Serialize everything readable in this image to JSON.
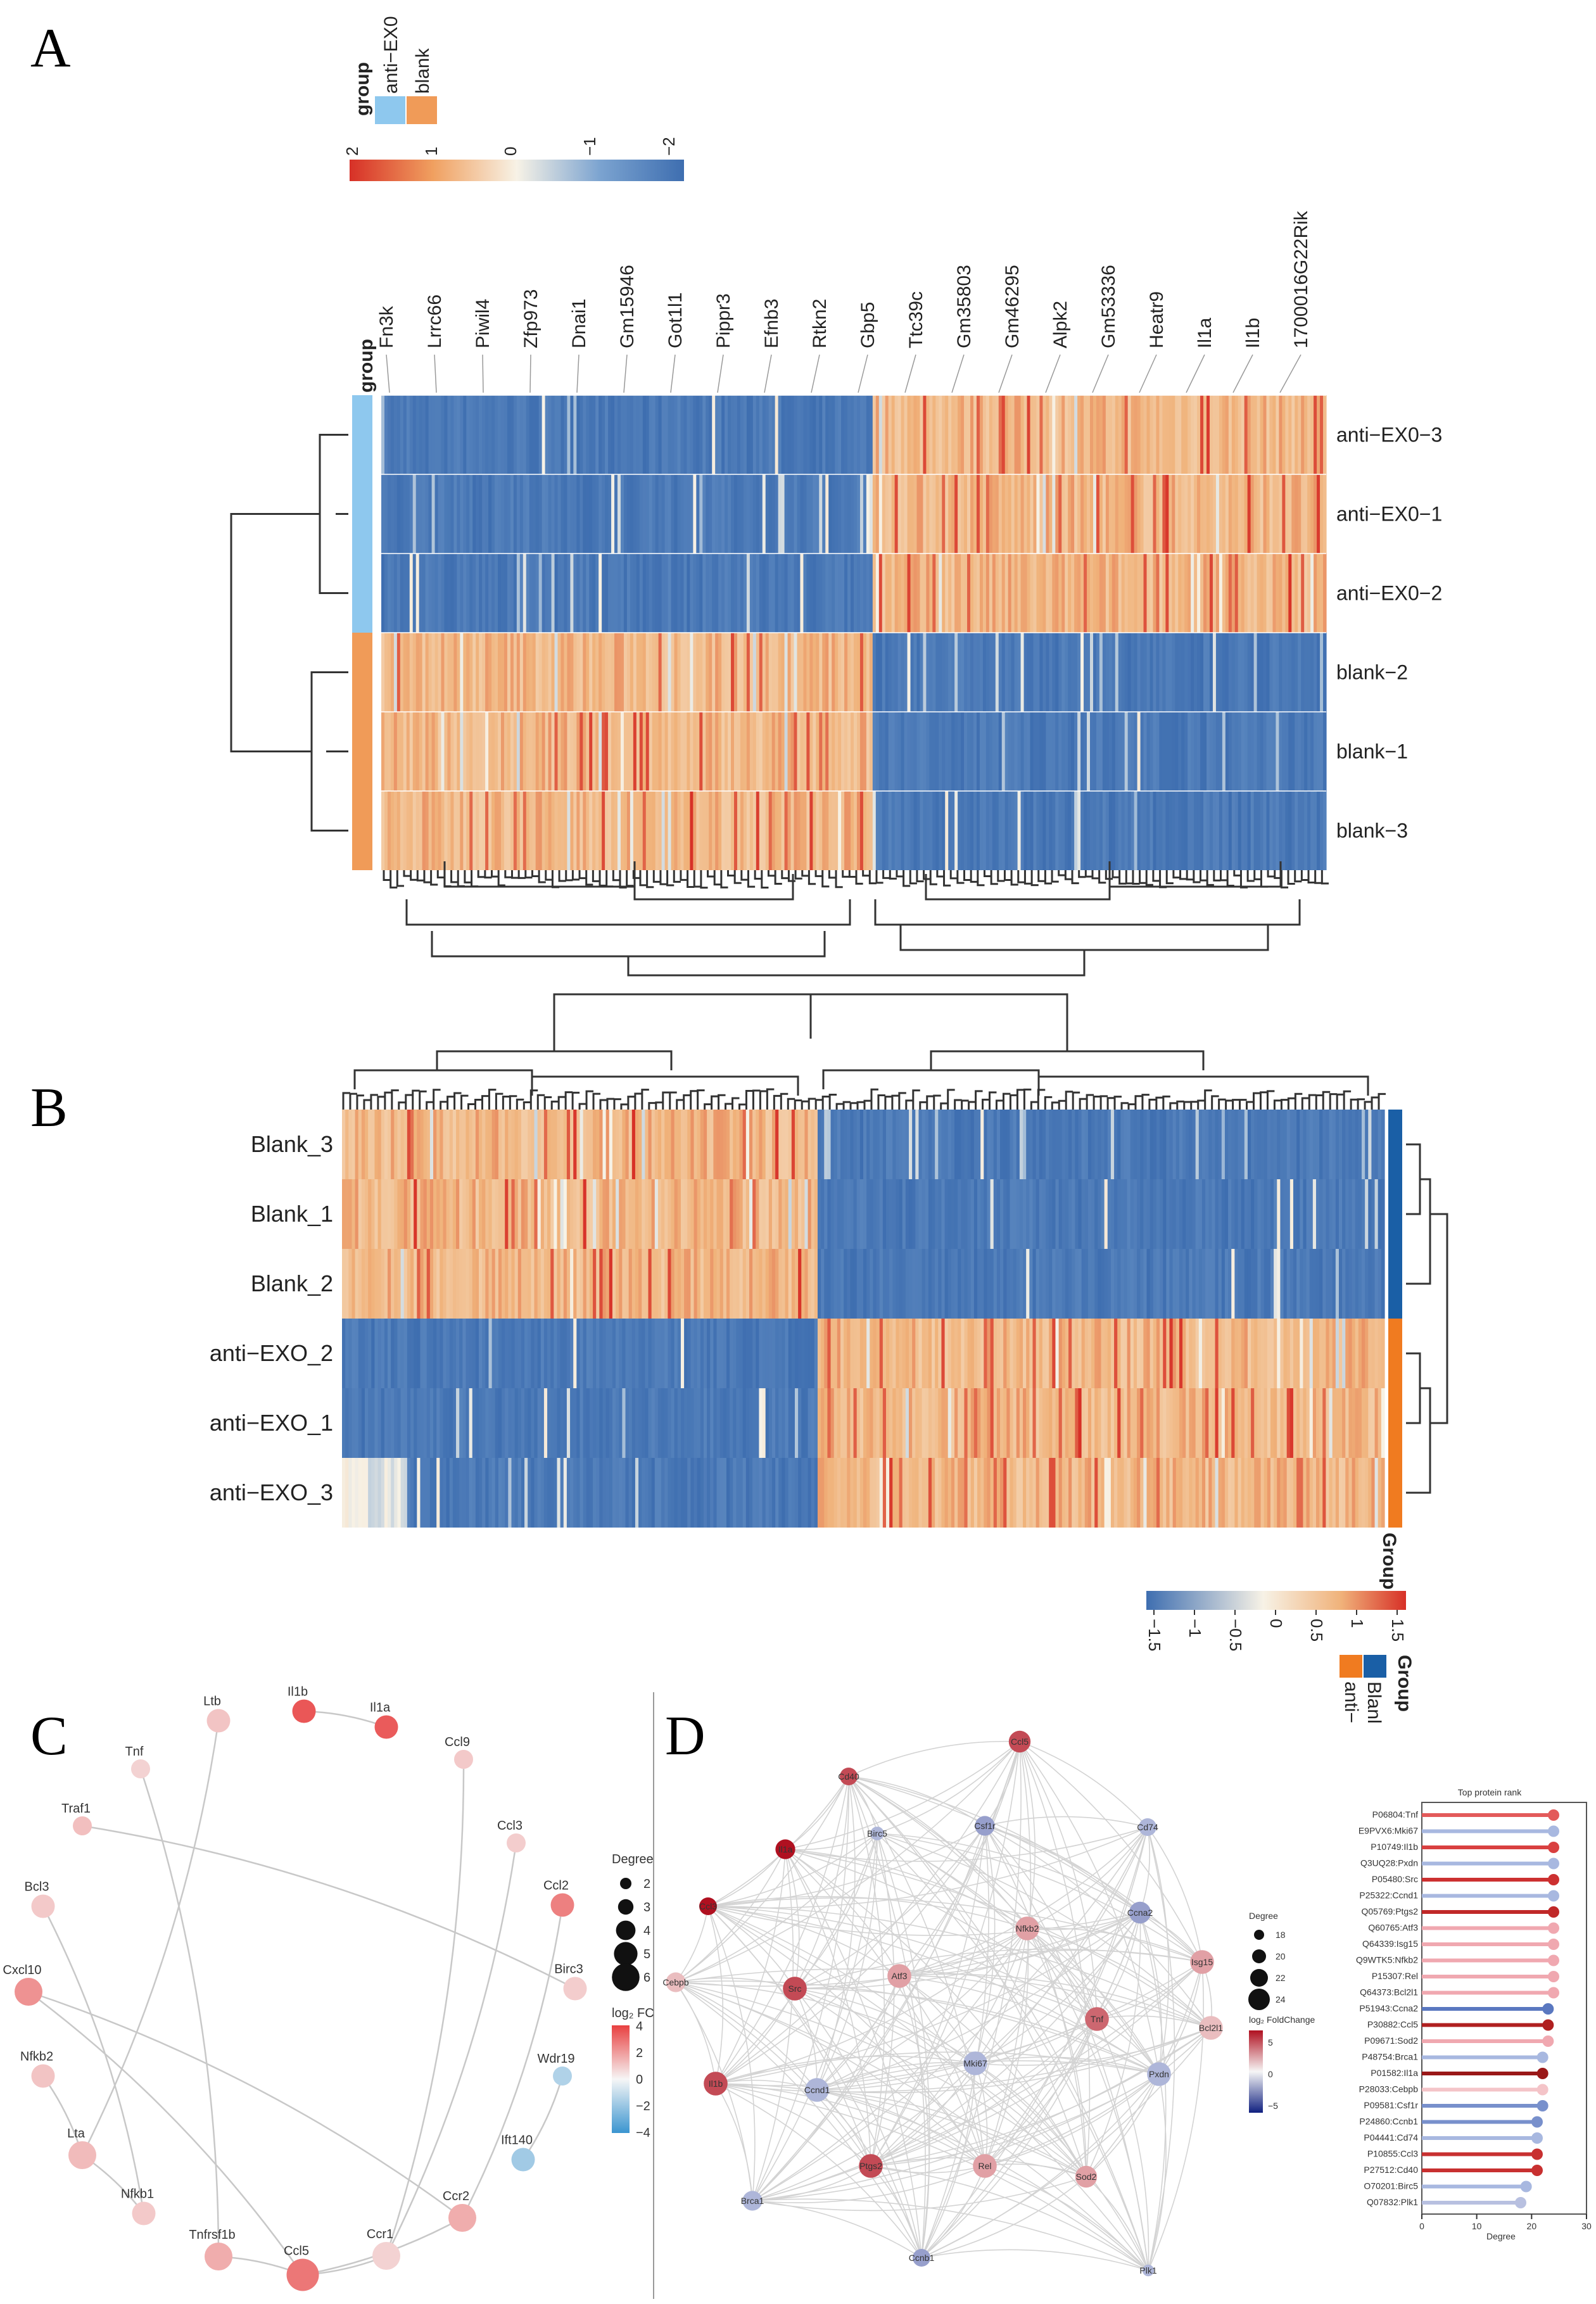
{
  "panels": {
    "a": "A",
    "b": "B",
    "c": "C",
    "d": "D"
  },
  "colors": {
    "low": "#3e6eb0",
    "mid": "#f7f2e6",
    "high": "#d73027",
    "orange": "#f0b27a",
    "anti_group": "#8ec8ee",
    "blank_group": "#f09b58",
    "groupB_blank": "#1a5fa6",
    "groupB_anti": "#f07b20"
  },
  "chart_data": [
    {
      "type": "heatmap",
      "panel": "A",
      "legend_title": "group",
      "legend_groups": [
        "anti−EX0",
        "blank"
      ],
      "colorbar_ticks": [
        "2",
        "1",
        "0",
        "−1",
        "−2"
      ],
      "side_title": "group",
      "genes": [
        "Fn3k",
        "Lrrc66",
        "Piwil4",
        "Zfp973",
        "Dnai1",
        "Gm15946",
        "Got1l1",
        "Pippr3",
        "Efnb3",
        "Rtkn2",
        "Gbp5",
        "Ttc39c",
        "Gm35803",
        "Gm46295",
        "Alpk2",
        "Gm53336",
        "Heatr9",
        "Il1a",
        "Il1b",
        "1700016G22Rik"
      ],
      "rows": [
        "anti−EX0−3",
        "anti−EX0−1",
        "anti−EX0−2",
        "blank−2",
        "blank−1",
        "blank−3"
      ],
      "row_groups": [
        "anti−EX0",
        "anti−EX0",
        "anti−EX0",
        "blank",
        "blank",
        "blank"
      ],
      "pattern": "left block high in blank rows / low in anti−EX0 rows; right block high in anti−EX0 rows / low in blank rows"
    },
    {
      "type": "heatmap",
      "panel": "B",
      "rows": [
        "Blank_3",
        "Blank_1",
        "Blank_2",
        "anti−EXO_2",
        "anti−EXO_1",
        "anti−EXO_3"
      ],
      "side_title": "Group",
      "legend_groups": [
        "Blanl",
        "anti−"
      ],
      "colorbar_ticks": [
        "−1.5",
        "−1",
        "−0.5",
        "0",
        "0.5",
        "1",
        "1.5"
      ],
      "pattern": "left block high in Blank rows / low in anti−EXO rows; right block low in Blank rows / high in anti−EXO rows"
    },
    {
      "type": "network",
      "panel": "C",
      "size_legend": {
        "title": "Degree",
        "values": [
          "2",
          "3",
          "4",
          "5",
          "6"
        ]
      },
      "color_legend": {
        "title": "log₂ FC",
        "ticks": [
          "4",
          "2",
          "0",
          "−2",
          "−4"
        ]
      },
      "nodes": [
        {
          "name": "Il1b",
          "fc": 3.5
        },
        {
          "name": "Il1a",
          "fc": 3.4
        },
        {
          "name": "Ltb",
          "fc": 1.1
        },
        {
          "name": "Tnf",
          "fc": 0.8
        },
        {
          "name": "Ccl9",
          "fc": 1.0
        },
        {
          "name": "Traf1",
          "fc": 1.2
        },
        {
          "name": "Ccl3",
          "fc": 0.9
        },
        {
          "name": "Ccl2",
          "fc": 2.6
        },
        {
          "name": "Bcl3",
          "fc": 1.0
        },
        {
          "name": "Birc3",
          "fc": 0.9
        },
        {
          "name": "Cxcl10",
          "fc": 2.2
        },
        {
          "name": "Wdr19",
          "fc": -1.5
        },
        {
          "name": "Nfkb2",
          "fc": 1.1
        },
        {
          "name": "Ift140",
          "fc": -1.8
        },
        {
          "name": "Lta",
          "fc": 1.3
        },
        {
          "name": "Nfkb1",
          "fc": 1.0
        },
        {
          "name": "Ccr2",
          "fc": 1.6
        },
        {
          "name": "Ccr1",
          "fc": 0.8
        },
        {
          "name": "Tnfrsf1b",
          "fc": 1.6
        },
        {
          "name": "Ccl5",
          "fc": 2.8
        }
      ]
    },
    {
      "type": "network",
      "panel": "D",
      "size_legend": {
        "title": "Degree",
        "values": [
          "18",
          "20",
          "22",
          "24"
        ]
      },
      "color_legend": {
        "title": "log₂ FoldChange",
        "ticks": [
          "5",
          "0",
          "−5"
        ]
      },
      "nodes": [
        {
          "name": "Cd40",
          "fc": 5
        },
        {
          "name": "Ccl5",
          "fc": 5
        },
        {
          "name": "Csf1r",
          "fc": -3
        },
        {
          "name": "Birc5",
          "fc": -2
        },
        {
          "name": "Cd74",
          "fc": -2
        },
        {
          "name": "Il1a",
          "fc": 7
        },
        {
          "name": "Ccna2",
          "fc": -3
        },
        {
          "name": "Ccl3",
          "fc": 7
        },
        {
          "name": "Nfkb2",
          "fc": 2
        },
        {
          "name": "Atf3",
          "fc": 2
        },
        {
          "name": "Cebpb",
          "fc": 1
        },
        {
          "name": "Src",
          "fc": 5
        },
        {
          "name": "Isg15",
          "fc": 2
        },
        {
          "name": "Tnf",
          "fc": 4
        },
        {
          "name": "Bcl2l1",
          "fc": 1
        },
        {
          "name": "Il1b",
          "fc": 5
        },
        {
          "name": "Ccnd1",
          "fc": -2
        },
        {
          "name": "Mki67",
          "fc": -2
        },
        {
          "name": "Pxdn",
          "fc": -2
        },
        {
          "name": "Rel",
          "fc": 2
        },
        {
          "name": "Ptgs2",
          "fc": 5
        },
        {
          "name": "Sod2",
          "fc": 2
        },
        {
          "name": "Brca1",
          "fc": -2
        },
        {
          "name": "Ccnb1",
          "fc": -3
        },
        {
          "name": "Plk1",
          "fc": -2
        }
      ]
    },
    {
      "type": "bar",
      "panel": "D-rank",
      "title": "Top protein rank",
      "xlabel": "Degree",
      "xlim": [
        0,
        30
      ],
      "xticks": [
        "0",
        "10",
        "20",
        "30"
      ],
      "categories": [
        "P06804:Tnf",
        "E9PVX6:Mki67",
        "P10749:Il1b",
        "Q3UQ28:Pxdn",
        "P05480:Src",
        "P25322:Ccnd1",
        "Q05769:Ptgs2",
        "Q60765:Atf3",
        "Q64339:Isg15",
        "Q9WTK5:Nfkb2",
        "P15307:Rel",
        "Q64373:Bcl2l1",
        "P51943:Ccna2",
        "P30882:Ccl5",
        "P09671:Sod2",
        "P48754:Brca1",
        "P01582:Il1a",
        "P28033:Cebpb",
        "P09581:Csf1r",
        "P24860:Ccnb1",
        "P04441:Cd74",
        "P10855:Ccl3",
        "P27512:Cd40",
        "O70201:Birc5",
        "Q07832:Plk1"
      ],
      "values": [
        24,
        24,
        24,
        24,
        24,
        24,
        24,
        24,
        24,
        24,
        24,
        24,
        23,
        23,
        23,
        22,
        22,
        22,
        22,
        21,
        21,
        21,
        21,
        19,
        18
      ],
      "colors": [
        "#e35a5a",
        "#a8b8e0",
        "#d94040",
        "#a8b8e0",
        "#cc3030",
        "#a8b8e0",
        "#c02828",
        "#f0a8b0",
        "#f0a8b0",
        "#f0a8b0",
        "#f0a8b0",
        "#f0a8b0",
        "#5a78c0",
        "#b02020",
        "#f0a8b0",
        "#a8b8e0",
        "#9a1818",
        "#f4c4c8",
        "#7890cc",
        "#7890cc",
        "#a8b8e0",
        "#c83030",
        "#c83030",
        "#a8b8e0",
        "#b8c0e0"
      ]
    }
  ]
}
